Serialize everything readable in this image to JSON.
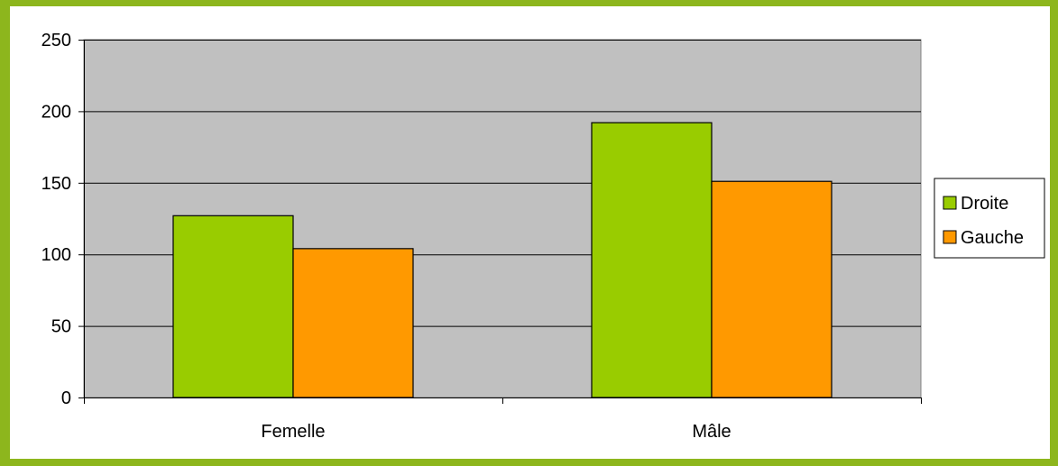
{
  "chart_data": {
    "type": "bar",
    "categories": [
      "Femelle",
      "Mâle"
    ],
    "series": [
      {
        "name": "Droite",
        "values": [
          127,
          192
        ],
        "color": "#99cc00"
      },
      {
        "name": "Gauche",
        "values": [
          104,
          151
        ],
        "color": "#ff9900"
      }
    ],
    "ylim": [
      0,
      250
    ],
    "yticks": [
      0,
      50,
      100,
      150,
      200,
      250
    ],
    "grid": true,
    "legend_position": "right",
    "plot_background": "#c0c0c0"
  },
  "colors": {
    "page_background": "#8db61d",
    "chart_background": "#ffffff"
  }
}
